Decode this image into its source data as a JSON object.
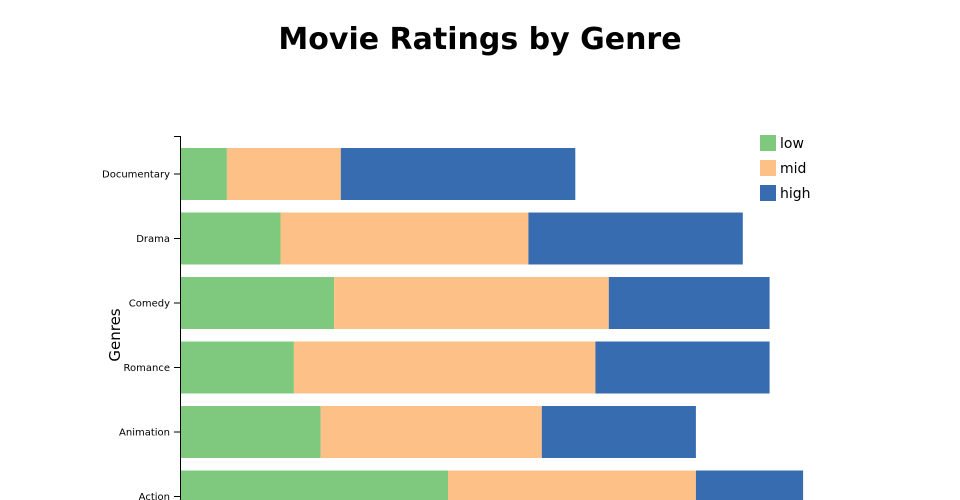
{
  "chart_data": {
    "type": "bar",
    "orientation": "horizontal",
    "stacked": true,
    "title": "Movie Ratings by Genre",
    "ylabel": "Genres",
    "xlabel": "",
    "categories": [
      "Documentary",
      "Drama",
      "Comedy",
      "Romance",
      "Animation",
      "Action"
    ],
    "series": [
      {
        "name": "low",
        "color": "#7fc97f",
        "values": [
          7,
          15,
          23,
          17,
          21,
          40
        ]
      },
      {
        "name": "mid",
        "color": "#fdc086",
        "values": [
          17,
          37,
          41,
          45,
          33,
          37
        ]
      },
      {
        "name": "high",
        "color": "#386cb0",
        "values": [
          35,
          32,
          24,
          26,
          23,
          16
        ]
      }
    ],
    "xlim": [
      0,
      100
    ],
    "legend_position": "top-right",
    "grid": false
  }
}
